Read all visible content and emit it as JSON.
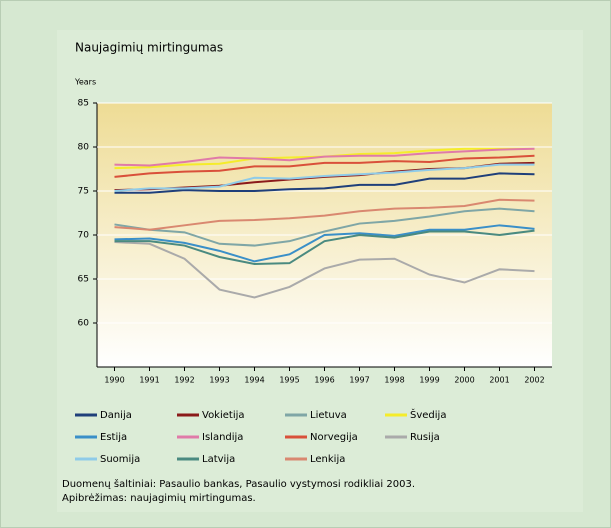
{
  "chart_data": {
    "type": "line",
    "title": "Naujagimių mirtingumas",
    "y_label": "Years",
    "x": [
      1990,
      1991,
      1992,
      1993,
      1994,
      1995,
      1996,
      1997,
      1998,
      1999,
      2000,
      2001,
      2002
    ],
    "xlim": [
      1989.5,
      2002.5
    ],
    "xticks": [
      1990,
      1991,
      1992,
      1993,
      1994,
      1995,
      1996,
      1997,
      1998,
      1999,
      2000,
      2001,
      2002
    ],
    "ylim": [
      55,
      85
    ],
    "yticks": [
      60,
      65,
      70,
      75,
      80,
      85
    ],
    "series": [
      {
        "name": "Danija",
        "color": "#1f3f7a",
        "values": [
          74.8,
          74.8,
          75.1,
          75.0,
          75.0,
          75.2,
          75.3,
          75.7,
          75.7,
          76.4,
          76.4,
          77.0,
          76.9
        ]
      },
      {
        "name": "Vokietija",
        "color": "#8b1a1a",
        "values": [
          75.1,
          75.2,
          75.4,
          75.6,
          76.0,
          76.3,
          76.6,
          76.8,
          77.2,
          77.5,
          77.6,
          78.1,
          78.2
        ]
      },
      {
        "name": "Lietuva",
        "color": "#7fa6a6",
        "values": [
          71.2,
          70.6,
          70.3,
          69.0,
          68.8,
          69.3,
          70.4,
          71.3,
          71.6,
          72.1,
          72.7,
          73.0,
          72.7
        ]
      },
      {
        "name": "Švedija",
        "color": "#f5ec2a",
        "values": [
          77.6,
          77.7,
          78.0,
          78.1,
          78.7,
          78.8,
          78.9,
          79.2,
          79.3,
          79.6,
          79.8,
          79.8,
          79.8
        ]
      },
      {
        "name": "Estija",
        "color": "#3a8fc8",
        "values": [
          69.5,
          69.6,
          69.1,
          68.2,
          67.0,
          67.8,
          70.0,
          70.2,
          69.9,
          70.6,
          70.6,
          71.1,
          70.7
        ]
      },
      {
        "name": "Islandija",
        "color": "#e07aa8",
        "values": [
          78.0,
          77.9,
          78.3,
          78.8,
          78.7,
          78.5,
          78.9,
          79.0,
          79.0,
          79.3,
          79.5,
          79.7,
          79.8
        ]
      },
      {
        "name": "Norvegija",
        "color": "#d9503a",
        "values": [
          76.6,
          77.0,
          77.2,
          77.3,
          77.8,
          77.8,
          78.2,
          78.2,
          78.4,
          78.3,
          78.7,
          78.8,
          79.0
        ]
      },
      {
        "name": "Rusija",
        "color": "#aaaaaa",
        "values": [
          69.2,
          69.0,
          67.3,
          63.8,
          62.9,
          64.1,
          66.2,
          67.2,
          67.3,
          65.5,
          64.6,
          66.1,
          65.9
        ]
      },
      {
        "name": "Suomija",
        "color": "#8fcbe8",
        "values": [
          75.0,
          75.3,
          75.3,
          75.5,
          76.5,
          76.4,
          76.7,
          76.9,
          77.1,
          77.4,
          77.6,
          78.0,
          78.0
        ]
      },
      {
        "name": "Latvija",
        "color": "#4a8a80",
        "values": [
          69.3,
          69.3,
          68.8,
          67.5,
          66.7,
          66.8,
          69.3,
          70.0,
          69.7,
          70.4,
          70.4,
          70.0,
          70.5
        ]
      },
      {
        "name": "Lenkija",
        "color": "#d98870",
        "values": [
          70.9,
          70.6,
          71.1,
          71.6,
          71.7,
          71.9,
          72.2,
          72.7,
          73.0,
          73.1,
          73.3,
          74.0,
          73.9
        ]
      }
    ],
    "notes": [
      "Duomenų šaltiniai: Pasaulio bankas, Pasaulio vystymosi rodikliai 2003.",
      "Apibrėžimas: naujagimių mirtingumas."
    ]
  }
}
